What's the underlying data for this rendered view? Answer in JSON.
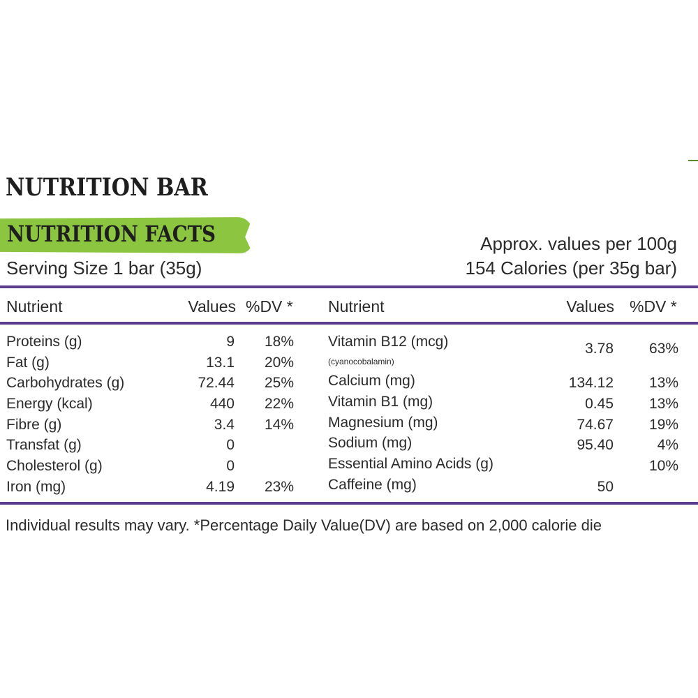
{
  "product_title": "NUTRITION BAR",
  "facts_title": "NUTRITION FACTS",
  "serving_size": "Serving Size 1 bar (35g)",
  "approx_values": "Approx. values per 100g",
  "calories_line": "154 Calories (per 35g bar)",
  "headers": {
    "nutrient": "Nutrient",
    "values": "Values",
    "dv": "%DV *"
  },
  "left_rows": [
    {
      "nutrient": "Proteins (g)",
      "value": "9",
      "dv": "18%"
    },
    {
      "nutrient": "Fat (g)",
      "value": "13.1",
      "dv": "20%"
    },
    {
      "nutrient": "Carbohydrates (g)",
      "value": "72.44",
      "dv": "25%"
    },
    {
      "nutrient": "Energy (kcal)",
      "value": "440",
      "dv": "22%"
    },
    {
      "nutrient": "Fibre (g)",
      "value": "3.4",
      "dv": "14%"
    },
    {
      "nutrient": "Transfat (g)",
      "value": "0",
      "dv": ""
    },
    {
      "nutrient": "Cholesterol (g)",
      "value": "0",
      "dv": ""
    },
    {
      "nutrient": "Iron (mg)",
      "value": "4.19",
      "dv": "23%"
    }
  ],
  "right_rows": [
    {
      "nutrient": "Vitamin B12 (mcg)",
      "note": "(cyanocobalamin)",
      "value": "3.78",
      "dv": "63%"
    },
    {
      "nutrient": "Calcium (mg)",
      "value": "134.12",
      "dv": "13%"
    },
    {
      "nutrient": "Vitamin B1 (mg)",
      "value": "0.45",
      "dv": "13%"
    },
    {
      "nutrient": "Magnesium (mg)",
      "value": "74.67",
      "dv": "19%"
    },
    {
      "nutrient": "Sodium (mg)",
      "value": "95.40",
      "dv": "4%"
    },
    {
      "nutrient": "Essential Amino Acids (g)",
      "value": "",
      "dv": "10%"
    },
    {
      "nutrient": "Caffeine (mg)",
      "value": "50",
      "dv": ""
    }
  ],
  "footnote": "Individual results may vary.  *Percentage Daily Value(DV) are based on 2,000 calorie die",
  "colors": {
    "banner_green": "#8cc540",
    "rule_purple": "#5b3b8c"
  }
}
